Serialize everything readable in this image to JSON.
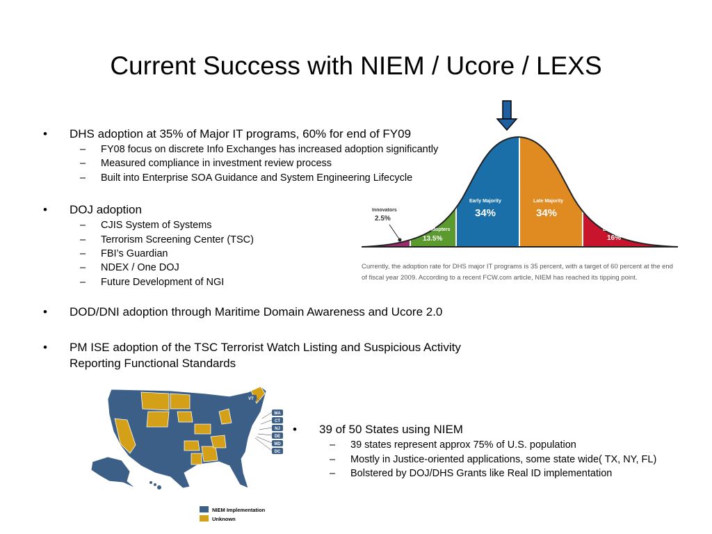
{
  "slide": {
    "title": "Current Success with NIEM / Ucore / LEXS",
    "bullet_glyph": "•",
    "dash_glyph": "–"
  },
  "bullets": [
    {
      "text": "DHS adoption at 35% of Major IT programs, 60% for end of FY09",
      "subs": [
        "FY08 focus on discrete Info Exchanges has increased adoption significantly",
        "Measured compliance in investment review process",
        "Built into Enterprise SOA Guidance and System Engineering Lifecycle"
      ]
    },
    {
      "text": "DOJ adoption",
      "subs": [
        "CJIS System of Systems",
        "Terrorism Screening Center (TSC)",
        "FBI’s Guardian",
        "NDEX / One DOJ",
        "Future Development of NGI"
      ]
    },
    {
      "text": "DOD/DNI adoption through Maritime Domain Awareness and Ucore 2.0",
      "subs": []
    },
    {
      "text": "PM ISE adoption of the TSC Terrorist  Watch Listing and Suspicious Activity Reporting Functional Standards",
      "subs": []
    },
    {
      "text": "39 of 50 States using NIEM",
      "subs": [
        "39 states represent approx 75% of U.S. population",
        "Mostly in Justice-oriented applications, some state wide( TX, NY, FL)",
        "Bolstered by DOJ/DHS Grants like Real ID implementation"
      ]
    }
  ],
  "adoption_curve": {
    "segments": [
      {
        "name": "Innovators",
        "value": "2.5%",
        "color": "#9c2a6e"
      },
      {
        "name": "Early Adopters",
        "value": "13.5%",
        "color": "#5a9a2f"
      },
      {
        "name": "Early Majority",
        "value": "34%",
        "color": "#1a6fa8"
      },
      {
        "name": "Late Majority",
        "value": "34%",
        "color": "#e08a22"
      },
      {
        "name": "Laggards",
        "value": "16%",
        "color": "#c8152d"
      }
    ],
    "arrow_color": "#1f5fa0",
    "caption": "Currently, the adoption rate for DHS major IT programs is 35 percent, with a target of 60 percent at the end of fiscal year 2009. According to a recent FCW.com article, NIEM has reached its tipping point."
  },
  "map": {
    "state_tags": [
      "VT",
      "MA",
      "CT",
      "NJ",
      "DE",
      "MD",
      "DC"
    ],
    "legend": [
      {
        "label": "NIEM Implementation",
        "color": "#3b5f86"
      },
      {
        "label": "Unknown",
        "color": "#d4a017"
      }
    ]
  }
}
